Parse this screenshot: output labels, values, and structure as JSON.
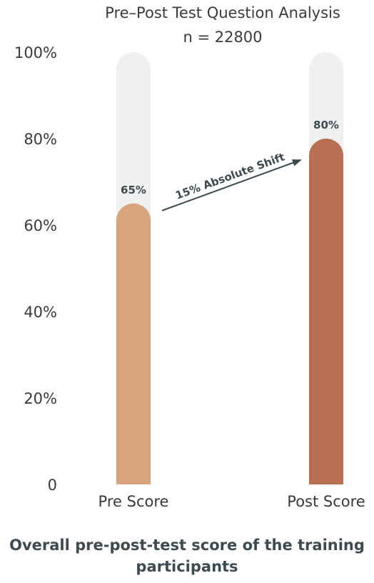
{
  "chart_data": {
    "type": "bar",
    "title": "Pre–Post Test Question Analysis",
    "subtitle": "n = 22800",
    "categories": [
      "Pre Score",
      "Post Score"
    ],
    "values": [
      65,
      80
    ],
    "value_labels": [
      "65%",
      "80%"
    ],
    "ylim": [
      0,
      100
    ],
    "y_ticks": [
      "0",
      "20%",
      "40%",
      "60%",
      "80%",
      "100%"
    ],
    "y_tick_values": [
      0,
      20,
      40,
      60,
      80,
      100
    ],
    "bar_colors": [
      "#d9a47b",
      "#b86f52"
    ],
    "track_color": "#eff1f1",
    "annotation": "15% Absolute Shift",
    "grid": false,
    "legend": "none"
  },
  "caption": "Overall pre-post-test score of the training participants"
}
